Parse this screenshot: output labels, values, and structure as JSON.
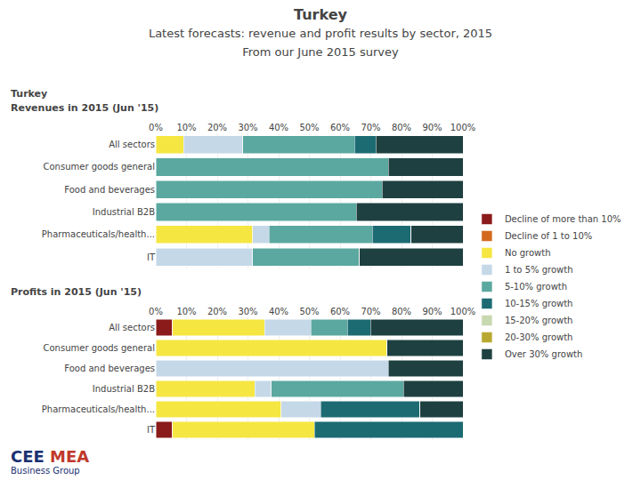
{
  "chart_data": [
    {
      "type": "bar",
      "orientation": "horizontal",
      "stacked": true,
      "title": "Turkey",
      "subtitle": [
        "Latest forecasts: revenue and profit results by sector, 2015",
        "From our June 2015 survey"
      ],
      "annotations": [
        "Turkey",
        "Revenues in 2015 (Jun '15)"
      ],
      "categories": [
        "All sectors",
        "Consumer goods general",
        "Food and beverages",
        "Industrial B2B",
        "Pharmaceuticals/health...",
        "IT"
      ],
      "series": [
        {
          "name": "Decline of more than 10%",
          "color": "#8B1A1A",
          "values": [
            0,
            0,
            0,
            0,
            0,
            0
          ]
        },
        {
          "name": "Decline of 1 to 10%",
          "color": "#D2691E",
          "values": [
            0,
            0,
            0,
            0,
            0,
            0
          ]
        },
        {
          "name": "No growth",
          "color": "#F5E642",
          "values": [
            9.0909090909,
            0,
            0,
            0,
            31.5789473684,
            0
          ]
        },
        {
          "name": "1 to 5% growth",
          "color": "#C5D8E8",
          "values": [
            19.1919191919,
            0,
            0,
            0,
            5.2631578947,
            31.5789473684
          ]
        },
        {
          "name": "5-10% growth",
          "color": "#5BA8A0",
          "values": [
            36.3636363636,
            75.7894736842,
            73.6842105263,
            65.2631578947,
            33.6842105263,
            34.7368421053
          ]
        },
        {
          "name": "10-15% growth",
          "color": "#1C6B73",
          "values": [
            7.0707070707,
            0,
            0,
            0,
            12.6315789474,
            0
          ]
        },
        {
          "name": "15-20% growth",
          "color": "#C8D8B0",
          "values": [
            0,
            0,
            0,
            0,
            0,
            0
          ]
        },
        {
          "name": "20-30% growth",
          "color": "#B8A830",
          "values": [
            0,
            0,
            0,
            0,
            0,
            0
          ]
        },
        {
          "name": "Over 30% growth",
          "color": "#1E4040",
          "values": [
            28.2828282828,
            24.2105263158,
            26.3157894737,
            34.7368421053,
            16.8421052632,
            33.6842105263
          ]
        }
      ],
      "xlim": [
        0,
        100
      ],
      "xticks": [
        {
          "value": 0,
          "label": "0%"
        },
        {
          "value": 10,
          "label": "10%"
        },
        {
          "value": 20,
          "label": "20%"
        },
        {
          "value": 30,
          "label": "30%"
        },
        {
          "value": 40,
          "label": "40%"
        },
        {
          "value": 50,
          "label": "50%"
        },
        {
          "value": 60,
          "label": "60%"
        },
        {
          "value": 70,
          "label": "70%"
        },
        {
          "value": 80,
          "label": "80%"
        },
        {
          "value": 90,
          "label": "90%"
        },
        {
          "value": 100,
          "label": "100%"
        }
      ],
      "grid": true,
      "legend": "right"
    },
    {
      "type": "bar",
      "orientation": "horizontal",
      "stacked": true,
      "annotations": [
        "Profits in 2015 (Jun '15)",
        {
          "text": "CEE",
          "color": "#1A3070"
        },
        {
          "text": "MEA",
          "color": "#C0392B"
        },
        {
          "text": "Business Group",
          "color": "#1A3070"
        }
      ],
      "categories": [
        "All sectors",
        "Consumer goods general",
        "Food and beverages",
        "Industrial B2B",
        "Pharmaceuticals/health...",
        "IT"
      ],
      "series": [
        {
          "name": "Decline of more than 10%",
          "color": "#8B1A1A",
          "values": [
            5.376344086,
            0,
            0,
            0,
            0,
            5.376344086
          ]
        },
        {
          "name": "Decline of 1 to 10%",
          "color": "#D2691E",
          "values": [
            0,
            0,
            0,
            0,
            0,
            0
          ]
        },
        {
          "name": "No growth",
          "color": "#F5E642",
          "values": [
            30.1075268817,
            75.2688172043,
            0,
            32.2580645161,
            40.8602150538,
            46.2365591398
          ]
        },
        {
          "name": "1 to 5% growth",
          "color": "#C5D8E8",
          "values": [
            15.0537634409,
            0,
            75.7894736842,
            5.376344086,
            12.9032258065,
            0
          ]
        },
        {
          "name": "5-10% growth",
          "color": "#5BA8A0",
          "values": [
            11.8279569892,
            0,
            0,
            43.0107526882,
            0,
            0
          ]
        },
        {
          "name": "10-15% growth",
          "color": "#1C6B73",
          "values": [
            7.5268817204,
            0,
            0,
            0,
            32.2580645161,
            48.3870967742
          ]
        },
        {
          "name": "15-20% growth",
          "color": "#C8D8B0",
          "values": [
            0,
            0,
            0,
            0,
            0,
            0
          ]
        },
        {
          "name": "20-30% growth",
          "color": "#B8A830",
          "values": [
            0,
            0,
            0,
            0,
            0,
            0
          ]
        },
        {
          "name": "Over 30% growth",
          "color": "#1E4040",
          "values": [
            30.1075268817,
            24.7311827957,
            24.2105263158,
            19.3548387097,
            13.9784946237,
            0
          ]
        }
      ],
      "xlim": [
        0,
        100
      ],
      "xticks": [
        {
          "value": 0,
          "label": "0%"
        },
        {
          "value": 10,
          "label": "10%"
        },
        {
          "value": 20,
          "label": "20%"
        },
        {
          "value": 30,
          "label": "30%"
        },
        {
          "value": 40,
          "label": "40%"
        },
        {
          "value": 50,
          "label": "50%"
        },
        {
          "value": 60,
          "label": "60%"
        },
        {
          "value": 70,
          "label": "70%"
        },
        {
          "value": 80,
          "label": "80%"
        },
        {
          "value": 90,
          "label": "90%"
        },
        {
          "value": 100,
          "label": "100%"
        }
      ],
      "grid": true
    }
  ]
}
